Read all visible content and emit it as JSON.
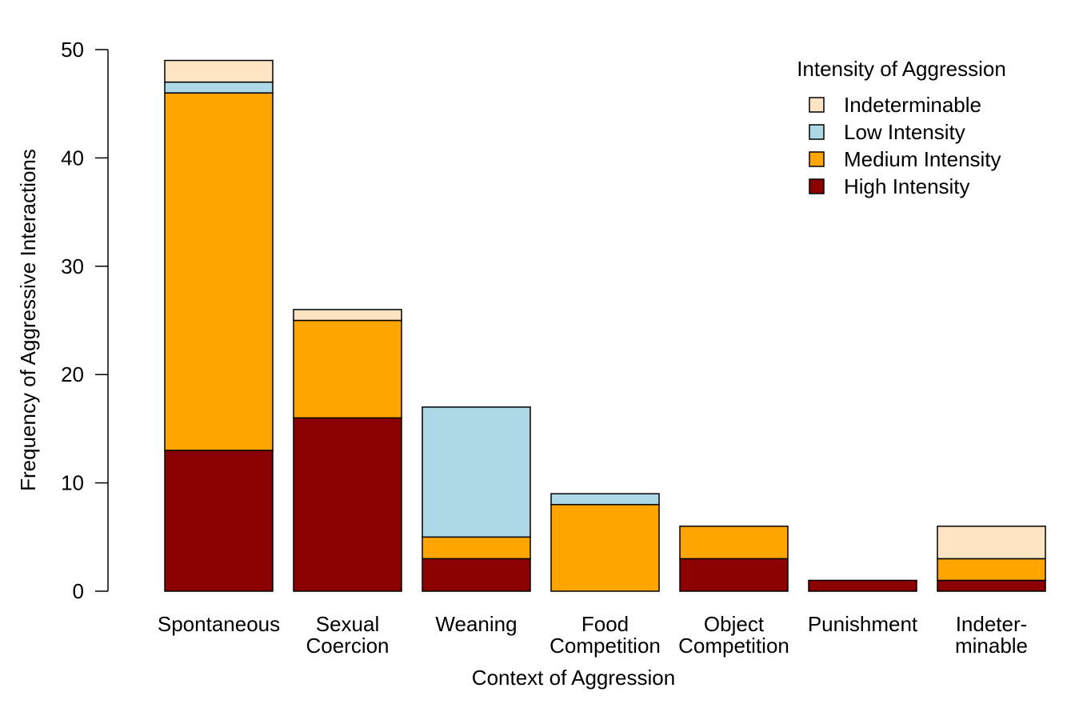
{
  "chart_data": {
    "type": "bar",
    "stacked": true,
    "categories": [
      [
        "Spontaneous"
      ],
      [
        "Sexual",
        "Coercion"
      ],
      [
        "Weaning"
      ],
      [
        "Food",
        "Competition"
      ],
      [
        "Object",
        "Competition"
      ],
      [
        "Punishment"
      ],
      [
        "Indeter-",
        "minable"
      ]
    ],
    "series": [
      {
        "name": "High Intensity",
        "color": "#8b0000",
        "values": [
          13,
          16,
          3,
          0,
          3,
          1,
          1
        ]
      },
      {
        "name": "Medium Intensity",
        "color": "#ffa500",
        "values": [
          33,
          9,
          2,
          8,
          3,
          0,
          2
        ]
      },
      {
        "name": "Low Intensity",
        "color": "#add8e6",
        "values": [
          1,
          0,
          12,
          1,
          0,
          0,
          0
        ]
      },
      {
        "name": "Indeterminable",
        "color": "#ffe4c4",
        "values": [
          2,
          1,
          0,
          0,
          0,
          0,
          3
        ]
      }
    ],
    "legend_order": [
      "Indeterminable",
      "Low Intensity",
      "Medium Intensity",
      "High Intensity"
    ],
    "legend_title": "Intensity of Aggression",
    "legend_position": "top-right",
    "xlabel": "Context of Aggression",
    "ylabel": "Frequency of Aggressive Interactions",
    "ylim": [
      0,
      50
    ],
    "yticks": [
      0,
      10,
      20,
      30,
      40,
      50
    ],
    "grid": false
  }
}
